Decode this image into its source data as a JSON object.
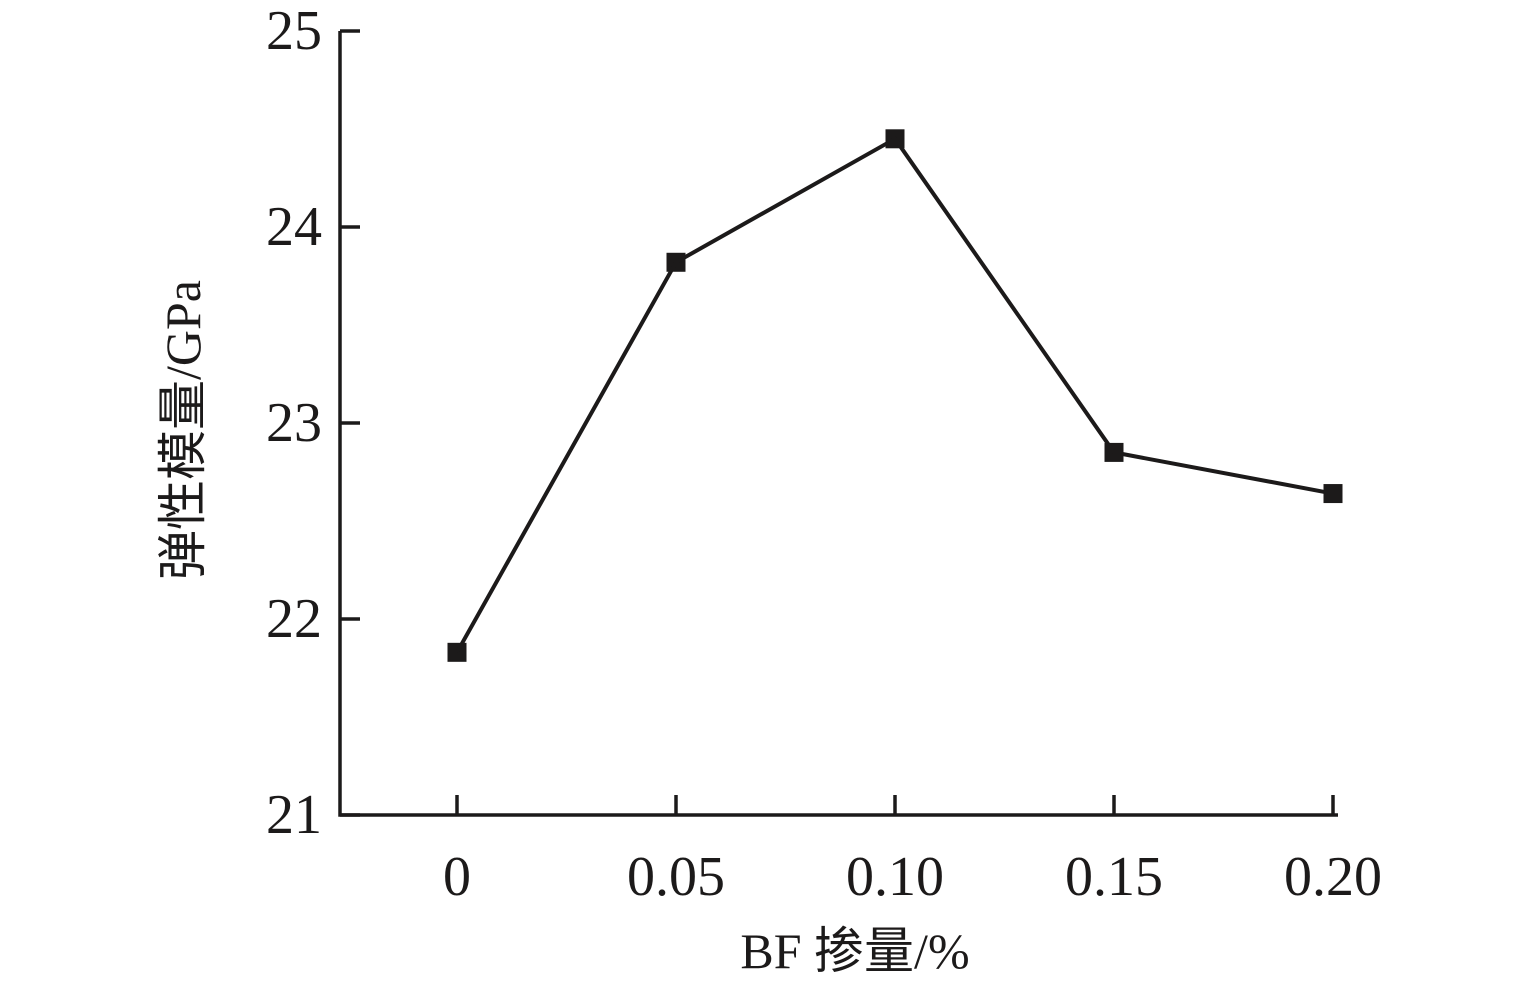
{
  "chart_data": {
    "type": "line",
    "title": "",
    "xlabel": "BF 掺量/%",
    "ylabel": "弹性模量/GPa",
    "x": [
      0,
      0.05,
      0.1,
      0.15,
      0.2
    ],
    "y": [
      21.83,
      23.82,
      24.45,
      22.85,
      22.64
    ],
    "series": [
      {
        "name": "弹性模量",
        "values": [
          21.83,
          23.82,
          24.45,
          22.85,
          22.64
        ]
      }
    ],
    "x_ticks": [
      0,
      0.05,
      0.1,
      0.15,
      0.2
    ],
    "x_tick_labels": [
      "0",
      "0.05",
      "0.10",
      "0.15",
      "0.20"
    ],
    "y_ticks": [
      21,
      22,
      23,
      24,
      25
    ],
    "y_tick_labels": [
      "21",
      "22",
      "23",
      "24",
      "25"
    ],
    "xlim": [
      0,
      0.2
    ],
    "ylim": [
      21,
      25
    ],
    "grid": false,
    "legend_position": "none",
    "marker": "square",
    "colors": {
      "ink": "#1c1a1a",
      "background": "#ffffff"
    }
  }
}
